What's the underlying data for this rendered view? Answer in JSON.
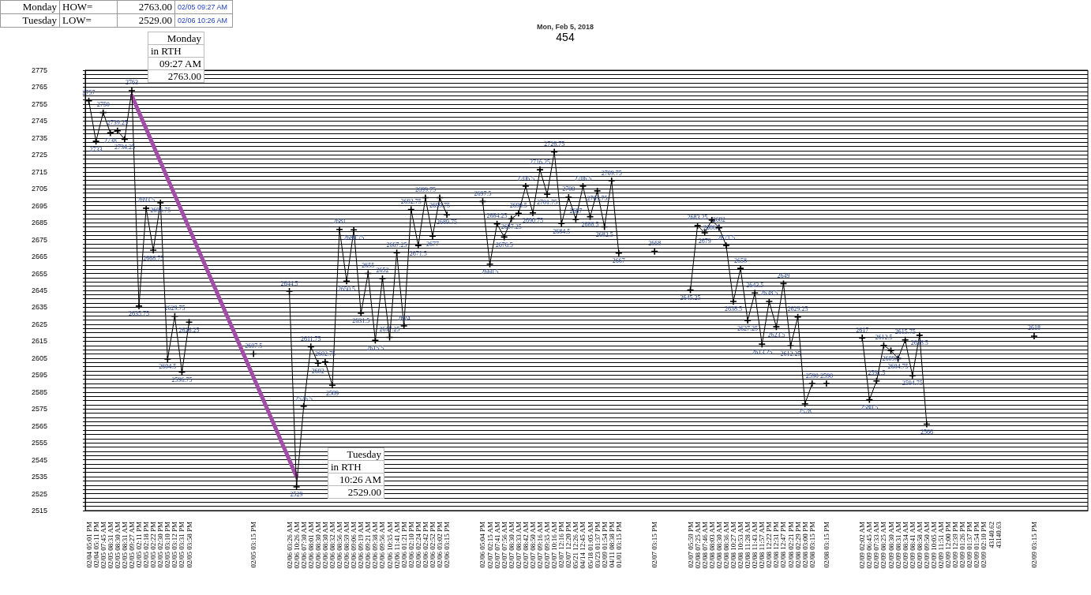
{
  "chart_data": {
    "type": "line",
    "title": "Mon, Feb 5, 2018",
    "subtitle": "454",
    "annotations": [
      "Monday",
      "HOW=",
      "2763.00",
      "02/05 09:27 AM",
      "Tuesday",
      "LOW=",
      "2529.00",
      "02/06 10:26 AM",
      "Monday\nin RTH\n09:27 AM\n2763.00",
      "Tuesday\nin RTH\n10:26 AM\n2529.00"
    ],
    "categories": [
      "02/04 05:01 PM",
      "02/04 05:11 PM",
      "02/05 07:45 AM",
      "02/05 08:31 AM",
      "02/05 08:30 AM",
      "02/05 08:31 AM",
      "02/05 09:27 AM",
      "02/05 02:11 PM",
      "02/05 02:18 PM",
      "02/05 02:22 PM",
      "02/05 02:30 PM",
      "02/05 03:10 PM",
      "02/05 03:12 PM",
      "02/05 03:31 PM",
      "02/05 03:58 PM",
      null,
      null,
      null,
      null,
      null,
      null,
      null,
      null,
      "02/05 03:15 PM",
      null,
      null,
      null,
      null,
      "02/06 03:26 AM",
      "02/06 10:26 AM",
      "02/06 07:30 AM",
      "02/06 08:01 AM",
      "02/06 08:30 AM",
      "02/06 08:30 AM",
      "02/06 08:32 AM",
      "02/06 08:56 AM",
      "02/06 08:59 AM",
      "02/06 09:06 AM",
      "02/06 09:19 AM",
      "02/06 09:21 AM",
      "02/06 09:38 AM",
      "02/06 09:56 AM",
      "02/06 10:35 AM",
      "02/06 11:41 AM",
      "02/06 01:21 PM",
      "02/06 02:10 PM",
      "02/06 02:24 PM",
      "02/06 02:42 PM",
      "02/06 02:52 PM",
      "02/06 03:02 PM",
      "02/06 03:15 PM",
      null,
      null,
      null,
      null,
      "02/06 05:04 PM",
      "02/07 02:15 AM",
      "02/07 07:41 AM",
      "02/07 07:56 AM",
      "02/07 08:30 AM",
      "02/07 08:33 AM",
      "02/07 08:42 AM",
      "02/07 08:50 AM",
      "02/07 09:16 AM",
      "02/07 09:35 AM",
      "02/07 10:16 AM",
      "02/07 12:16 PM",
      "02/07 12:20 PM",
      "05/21 12:26 AM",
      "04/14 12:45 AM",
      "05/18 01:05 AM",
      "03/23 01:37 PM",
      "02/09 01:54 PM",
      "04/11 08:38 PM",
      "01/01 03:15 PM",
      null,
      null,
      null,
      null,
      "02/07 03:15 PM",
      null,
      null,
      null,
      null,
      "02/07 05:59 PM",
      "02/08 07:25 AM",
      "02/08 07:46 AM",
      "02/08 08:03 AM",
      "02/08 08:30 AM",
      "02/08 08:36 AM",
      "02/08 10:27 AM",
      "02/08 10:53 AM",
      "02/08 11:28 AM",
      "02/08 11:43 AM",
      "02/08 11:57 AM",
      "02/08 12:22 PM",
      "02/08 12:31 PM",
      "02/08 12:47 PM",
      "02/08 02:21 PM",
      "02/08 02:29 PM",
      "02/08 03:00 PM",
      "02/08 03:15 PM",
      null,
      "02/08 03:15 PM",
      null,
      null,
      null,
      null,
      "02/09 02:02 AM",
      "02/09 06:45 AM",
      "02/09 07:33 AM",
      "02/09 08:25 AM",
      "02/09 08:30 AM",
      "02/09 08:31 AM",
      "02/09 08:34 AM",
      "02/09 08:41 AM",
      "02/09 08:58 AM",
      "02/09 09:50 AM",
      "02/09 10:05 AM",
      "02/09 11:51 AM",
      "02/09 12:00 PM",
      "02/09 12:39 PM",
      "02/09 01:26 PM",
      "02/09 01:37 PM",
      "02/09 01:54 PM",
      "02/09 02:10 PM",
      "43140.62",
      "43140.63",
      null,
      null,
      null,
      null,
      "02/09 03:15 PM",
      null,
      null,
      null,
      null,
      null,
      null,
      null
    ],
    "series": [
      {
        "color": "#000000",
        "values": [
          2757,
          2733,
          2750,
          2738,
          2739.25,
          2734.25,
          2763,
          2635.75,
          2693.5,
          2668.75,
          2696.75,
          2604.5,
          2629.75,
          2596.75,
          2626.25,
          null,
          null,
          null,
          null,
          null,
          null,
          null,
          null,
          2607.5,
          null,
          null,
          null,
          null,
          2644.5,
          2529,
          2576.5,
          2611.75,
          2602,
          2602.75,
          2589,
          2681,
          2650.5,
          2680.75,
          2631.5,
          2655,
          2615.5,
          2652,
          2617.25,
          2667.25,
          2624,
          2692.75,
          2671.5,
          2699.75,
          2677,
          2699.75,
          2689.75,
          null,
          null,
          null,
          null,
          2697.5,
          2660.5,
          2684.25,
          2676.5,
          2687.25,
          2690.5,
          2706.5,
          2690.75,
          2716.25,
          2701.75,
          2726.75,
          2684.5,
          2700,
          2687,
          2706.5,
          2688.5,
          2703.75,
          2682.5,
          2709.75,
          2667,
          null,
          null,
          null,
          null,
          2668,
          null,
          null,
          null,
          null,
          2645.25,
          2683.25,
          2679,
          2686.5,
          2682,
          2671.5,
          2638.5,
          2658,
          2627.25,
          2643.5,
          2613.25,
          2638.5,
          2623.5,
          2649,
          2612.25,
          2629.25,
          2578,
          2590,
          null,
          2590,
          null,
          null,
          null,
          null,
          2617,
          2580.5,
          2591.5,
          2612.5,
          2609.5,
          2604.75,
          2615.75,
          2594.75,
          2618.5,
          2566,
          null,
          null,
          null,
          null,
          null,
          null,
          null,
          null,
          null,
          null,
          null,
          null,
          null,
          null,
          2618,
          null,
          null,
          null,
          null,
          null,
          null,
          null
        ],
        "value_labels": [
          "2757",
          "2733",
          "2750",
          "2738",
          "2739.25",
          "2734.25",
          "2763",
          "2635.75",
          "2693.5",
          "2668.75",
          "2696.75",
          "2604.5",
          "2629.75",
          "2596.75",
          "2626.25",
          null,
          null,
          null,
          null,
          null,
          null,
          null,
          null,
          "2607.5",
          null,
          null,
          null,
          null,
          "2644.5",
          "2529",
          "2576.5",
          "2611.75",
          "2602",
          "2602.75",
          "2589",
          "2681",
          "2650.5",
          "2680.75",
          "2631.5",
          "2655",
          "2615.5",
          "2652",
          "2617.25",
          "2667.25",
          "2624",
          "2692.75",
          "2671.5",
          "2699.75",
          "2677",
          "2699.75",
          "2689.75",
          null,
          null,
          null,
          null,
          "2697.5",
          "2660.5",
          "2684.25",
          "2676.5",
          "2687.25",
          "2690.5",
          "2706.5",
          "2690.75",
          "2716.25",
          "2701.75",
          "2726.75",
          "2684.5",
          "2700",
          "2687",
          "2706.5",
          "2688.5",
          "2703.75",
          "2682.5",
          "2709.75",
          "2667",
          null,
          null,
          null,
          null,
          "2668",
          null,
          null,
          null,
          null,
          "2645.25",
          "2683.25",
          "2679",
          "2686.5",
          "2682",
          "2671.5",
          "2638.5",
          "2658",
          "2627.25",
          "2643.5",
          "2613.25",
          "2638.5",
          "2623.5",
          "2649",
          "2612.25",
          "2629.25",
          "2578",
          "2590",
          null,
          "2590",
          null,
          null,
          null,
          null,
          "2617",
          "2580.5",
          "2591.5",
          "2612.5",
          "2609.5",
          "2604.75",
          "2615.75",
          "2594.75",
          "2618.5",
          "2566",
          null,
          null,
          null,
          null,
          null,
          null,
          null,
          null,
          null,
          null,
          null,
          null,
          null,
          null,
          "2618",
          null,
          null,
          null,
          null,
          null,
          null,
          null
        ]
      },
      {
        "color": "#a24ea8",
        "x": [
          "02/05 09:27 AM",
          "02/06 10:26 AM"
        ],
        "values": [
          2760,
          2535
        ],
        "marker": "none"
      }
    ],
    "ylim": [
      2515,
      2775
    ],
    "yticks": [
      2515,
      {
        "value": 2517.5,
        "label": null
      },
      {
        "value": 2520,
        "label": null
      },
      {
        "value": 2522.5,
        "label": null
      },
      2525,
      {
        "value": 2527.5,
        "label": null
      },
      {
        "value": 2530,
        "label": null
      },
      {
        "value": 2532.5,
        "label": null
      },
      2535,
      {
        "value": 2537.5,
        "label": null
      },
      {
        "value": 2540,
        "label": null
      },
      {
        "value": 2542.5,
        "label": null
      },
      2545,
      {
        "value": 2547.5,
        "label": null
      },
      {
        "value": 2550,
        "label": null
      },
      {
        "value": 2552.5,
        "label": null
      },
      2555,
      {
        "value": 2557.5,
        "label": null
      },
      {
        "value": 2560,
        "label": null
      },
      {
        "value": 2562.5,
        "label": null
      },
      2565,
      {
        "value": 2567.5,
        "label": null
      },
      {
        "value": 2570,
        "label": null
      },
      {
        "value": 2572.5,
        "label": null
      },
      2575,
      {
        "value": 2577.5,
        "label": null
      },
      {
        "value": 2580,
        "label": null
      },
      {
        "value": 2582.5,
        "label": null
      },
      2585,
      {
        "value": 2587.5,
        "label": null
      },
      {
        "value": 2590,
        "label": null
      },
      {
        "value": 2592.5,
        "label": null
      },
      2595,
      {
        "value": 2597.5,
        "label": null
      },
      {
        "value": 2600,
        "label": null
      },
      {
        "value": 2602.5,
        "label": null
      },
      2605,
      {
        "value": 2607.5,
        "label": null
      },
      {
        "value": 2610,
        "label": null
      },
      {
        "value": 2612.5,
        "label": null
      },
      2615,
      {
        "value": 2617.5,
        "label": null
      },
      {
        "value": 2620,
        "label": null
      },
      {
        "value": 2622.5,
        "label": null
      },
      2625,
      {
        "value": 2627.5,
        "label": null
      },
      {
        "value": 2630,
        "label": null
      },
      {
        "value": 2632.5,
        "label": null
      },
      2635,
      {
        "value": 2637.5,
        "label": null
      },
      {
        "value": 2640,
        "label": null
      },
      {
        "value": 2642.5,
        "label": null
      },
      2645,
      {
        "value": 2647.5,
        "label": null
      },
      {
        "value": 2650,
        "label": null
      },
      {
        "value": 2652.5,
        "label": null
      },
      2655,
      {
        "value": 2657.5,
        "label": null
      },
      {
        "value": 2660,
        "label": null
      },
      {
        "value": 2662.5,
        "label": null
      },
      2665,
      {
        "value": 2667.5,
        "label": null
      },
      {
        "value": 2670,
        "label": null
      },
      {
        "value": 2672.5,
        "label": null
      },
      2675,
      {
        "value": 2677.5,
        "label": null
      },
      {
        "value": 2680,
        "label": null
      },
      {
        "value": 2682.5,
        "label": null
      },
      2685,
      {
        "value": 2687.5,
        "label": null
      },
      {
        "value": 2690,
        "label": null
      },
      {
        "value": 2692.5,
        "label": null
      },
      2695,
      {
        "value": 2697.5,
        "label": null
      },
      {
        "value": 2700,
        "label": null
      },
      {
        "value": 2702.5,
        "label": null
      },
      2705,
      {
        "value": 2707.5,
        "label": null
      },
      {
        "value": 2710,
        "label": null
      },
      {
        "value": 2712.5,
        "label": null
      },
      2715,
      {
        "value": 2717.5,
        "label": null
      },
      {
        "value": 2720,
        "label": null
      },
      {
        "value": 2722.5,
        "label": null
      },
      2725,
      {
        "value": 2727.5,
        "label": null
      },
      {
        "value": 2730,
        "label": null
      },
      {
        "value": 2732.5,
        "label": null
      },
      2735,
      {
        "value": 2737.5,
        "label": null
      },
      {
        "value": 2740,
        "label": null
      },
      {
        "value": 2742.5,
        "label": null
      },
      2745,
      {
        "value": 2747.5,
        "label": null
      },
      {
        "value": 2750,
        "label": null
      },
      {
        "value": 2752.5,
        "label": null
      },
      2755,
      {
        "value": 2757.5,
        "label": null
      },
      {
        "value": 2760,
        "label": null
      },
      {
        "value": 2762.5,
        "label": null
      },
      2765,
      {
        "value": 2767.5,
        "label": null
      },
      {
        "value": 2770,
        "label": null
      },
      {
        "value": 2772.5,
        "label": null
      },
      2775
    ],
    "grid": "y",
    "marker": "cross"
  }
}
